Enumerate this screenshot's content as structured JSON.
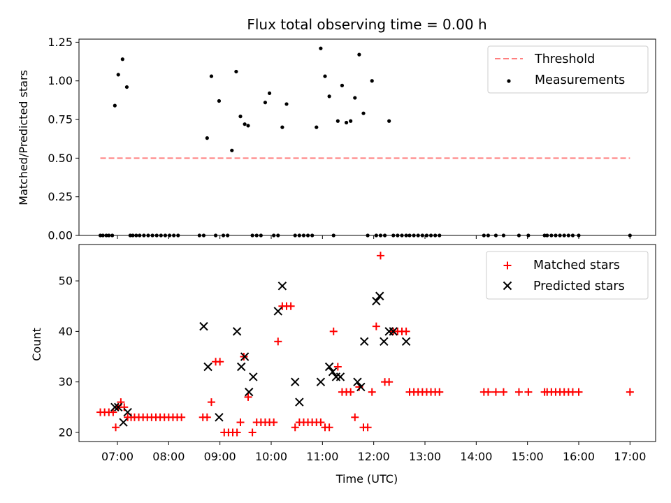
{
  "chart_data": [
    {
      "type": "scatter",
      "title": "Flux total observing time = 0.00 h",
      "xlabel": "",
      "ylabel": "Matched/Predicted stars",
      "ylim": [
        0,
        1.27
      ],
      "yticks": [
        "0.00",
        "0.25",
        "0.50",
        "0.75",
        "1.00",
        "1.25"
      ],
      "yticks_values": [
        0,
        0.25,
        0.5,
        0.75,
        1.0,
        1.25
      ],
      "legend_position": "top-right",
      "colors": {
        "threshold": "#ff7f7f",
        "measurements": "#000000"
      },
      "threshold": {
        "name": "Threshold",
        "y": 0.5,
        "x_start": "06:40",
        "x_end": "17:00"
      },
      "series": [
        {
          "name": "Measurements",
          "x": [
            "06:40",
            "06:43",
            "06:47",
            "06:50",
            "06:54",
            "06:57",
            "07:01",
            "07:06",
            "07:11",
            "07:15",
            "07:18",
            "07:22",
            "07:26",
            "07:31",
            "07:36",
            "07:41",
            "07:46",
            "07:51",
            "07:56",
            "08:01",
            "08:06",
            "08:11",
            "08:36",
            "08:41",
            "08:45",
            "08:50",
            "08:55",
            "08:59",
            "09:04",
            "09:09",
            "09:14",
            "09:19",
            "09:24",
            "09:29",
            "09:33",
            "09:38",
            "09:43",
            "09:48",
            "09:53",
            "09:58",
            "10:03",
            "10:08",
            "10:13",
            "10:18",
            "10:28",
            "10:33",
            "10:38",
            "10:43",
            "10:48",
            "10:53",
            "10:58",
            "11:03",
            "11:08",
            "11:13",
            "11:18",
            "11:23",
            "11:28",
            "11:33",
            "11:38",
            "11:43",
            "11:48",
            "11:53",
            "11:58",
            "12:03",
            "12:08",
            "12:13",
            "12:18",
            "12:23",
            "12:28",
            "12:33",
            "12:38",
            "12:42",
            "12:47",
            "12:52",
            "12:57",
            "13:02",
            "13:07",
            "13:12",
            "13:17",
            "14:09",
            "14:14",
            "14:23",
            "14:32",
            "14:50",
            "15:01",
            "15:20",
            "15:23",
            "15:28",
            "15:33",
            "15:38",
            "15:43",
            "15:48",
            "15:53",
            "16:00",
            "17:00"
          ],
          "y": [
            0,
            0,
            0,
            0,
            0,
            0.84,
            1.04,
            1.14,
            0.96,
            0,
            0,
            0,
            0,
            0,
            0,
            0,
            0,
            0,
            0,
            0,
            0,
            0,
            0,
            0,
            0.63,
            1.03,
            0,
            0.87,
            0,
            0,
            0.55,
            1.06,
            0.77,
            0.72,
            0.71,
            0,
            0,
            0,
            0.86,
            0.92,
            0,
            0,
            0.7,
            0.85,
            0,
            0,
            0,
            0,
            0,
            0.7,
            1.21,
            1.03,
            0.9,
            0,
            0.74,
            0.97,
            0.73,
            0.74,
            0.89,
            1.17,
            0.79,
            0,
            1.0,
            0,
            0,
            0,
            0.74,
            0,
            0,
            0,
            0,
            0,
            0,
            0,
            0,
            0,
            0,
            0,
            0,
            0,
            0,
            0,
            0,
            0,
            0,
            0,
            0,
            0,
            0,
            0,
            0,
            0,
            0,
            0,
            0
          ]
        }
      ]
    },
    {
      "type": "scatter",
      "title": "",
      "xlabel": "Time (UTC)",
      "ylabel": "Count",
      "ylim": [
        18.2,
        57.2
      ],
      "yticks": [
        "20",
        "30",
        "40",
        "50"
      ],
      "yticks_values": [
        20,
        30,
        40,
        50
      ],
      "xlim": [
        "06:15",
        "17:30"
      ],
      "xticks": [
        "07:00",
        "08:00",
        "09:00",
        "10:00",
        "11:00",
        "12:00",
        "13:00",
        "14:00",
        "15:00",
        "16:00",
        "17:00"
      ],
      "legend_position": "top-right",
      "colors": {
        "matched": "#ff0000",
        "predicted": "#000000"
      },
      "series": [
        {
          "name": "Matched stars",
          "x": [
            "06:40",
            "06:45",
            "06:50",
            "06:55",
            "06:58",
            "07:01",
            "07:04",
            "07:08",
            "07:12",
            "07:16",
            "07:20",
            "07:25",
            "07:30",
            "07:35",
            "07:40",
            "07:45",
            "07:50",
            "07:55",
            "08:00",
            "08:05",
            "08:10",
            "08:15",
            "08:40",
            "08:45",
            "08:50",
            "08:55",
            "09:00",
            "09:05",
            "09:10",
            "09:15",
            "09:20",
            "09:24",
            "09:28",
            "09:33",
            "09:38",
            "09:43",
            "09:48",
            "09:53",
            "09:58",
            "10:03",
            "10:08",
            "10:13",
            "10:18",
            "10:23",
            "10:28",
            "10:33",
            "10:38",
            "10:43",
            "10:48",
            "10:53",
            "10:58",
            "11:03",
            "11:08",
            "11:13",
            "11:18",
            "11:23",
            "11:28",
            "11:33",
            "11:38",
            "11:43",
            "11:48",
            "11:53",
            "11:58",
            "12:03",
            "12:08",
            "12:13",
            "12:18",
            "12:23",
            "12:28",
            "12:33",
            "12:38",
            "12:42",
            "12:47",
            "12:52",
            "12:57",
            "13:02",
            "13:07",
            "13:12",
            "13:17",
            "14:09",
            "14:14",
            "14:23",
            "14:32",
            "14:50",
            "15:01",
            "15:20",
            "15:23",
            "15:28",
            "15:33",
            "15:38",
            "15:43",
            "15:48",
            "15:53",
            "16:00",
            "17:00"
          ],
          "y": [
            24,
            24,
            24,
            24,
            21,
            25,
            26,
            25,
            23,
            23,
            23,
            23,
            23,
            23,
            23,
            23,
            23,
            23,
            23,
            23,
            23,
            23,
            23,
            23,
            26,
            34,
            34,
            20,
            20,
            20,
            20,
            22,
            35,
            27,
            20,
            22,
            22,
            22,
            22,
            22,
            38,
            45,
            45,
            45,
            21,
            22,
            22,
            22,
            22,
            22,
            22,
            21,
            21,
            40,
            33,
            28,
            28,
            28,
            23,
            29,
            21,
            21,
            28,
            41,
            55,
            30,
            30,
            40,
            40,
            40,
            40,
            28,
            28,
            28,
            28,
            28,
            28,
            28,
            28,
            28,
            28,
            28,
            28,
            28,
            28,
            28,
            28,
            28,
            28,
            28,
            28,
            28,
            28,
            28,
            28
          ]
        },
        {
          "name": "Predicted stars",
          "x": [
            "06:57",
            "07:01",
            "07:07",
            "07:12",
            "08:41",
            "08:46",
            "08:59",
            "09:20",
            "09:25",
            "09:29",
            "09:34",
            "09:39",
            "10:08",
            "10:13",
            "10:28",
            "10:33",
            "10:58",
            "11:08",
            "11:12",
            "11:16",
            "11:21",
            "11:41",
            "11:45",
            "11:49",
            "12:03",
            "12:07",
            "12:12",
            "12:18",
            "12:23",
            "12:38"
          ],
          "y": [
            25,
            25,
            22,
            24,
            41,
            33,
            23,
            40,
            33,
            35,
            28,
            31,
            44,
            49,
            30,
            26,
            30,
            33,
            32,
            31,
            31,
            30,
            29,
            38,
            46,
            47,
            38,
            40,
            40,
            38
          ]
        }
      ]
    }
  ]
}
